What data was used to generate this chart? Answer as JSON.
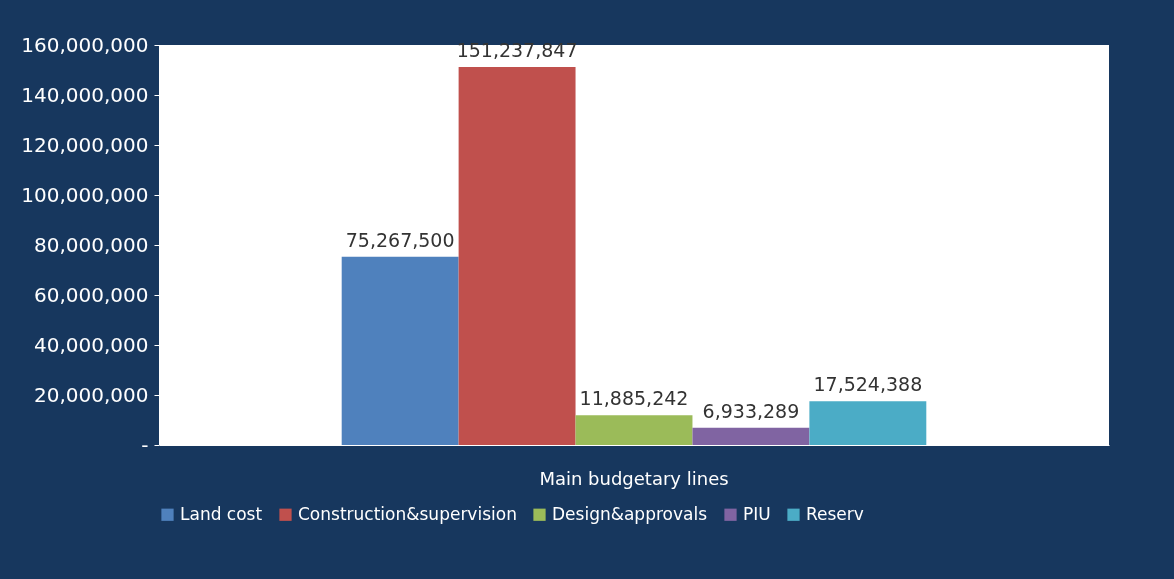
{
  "chart_data": {
    "type": "bar",
    "categories": [
      "Main budgetary lines"
    ],
    "series": [
      {
        "name": "Land cost",
        "color": "#4f81bd",
        "values": [
          75267500
        ],
        "value_labels": [
          "75,267,500"
        ]
      },
      {
        "name": "Construction&supervision",
        "color": "#c0504d",
        "values": [
          151237847
        ],
        "value_labels": [
          "151,237,847"
        ]
      },
      {
        "name": "Design&approvals",
        "color": "#9bbb59",
        "values": [
          11885242
        ],
        "value_labels": [
          "11,885,242"
        ]
      },
      {
        "name": "PIU",
        "color": "#8064a2",
        "values": [
          6933289
        ],
        "value_labels": [
          "6,933,289"
        ]
      },
      {
        "name": "Reserv",
        "color": "#4bacc6",
        "values": [
          17524388
        ],
        "value_labels": [
          "17,524,388"
        ]
      }
    ],
    "ylim": [
      0,
      160000000
    ],
    "yticks": [
      {
        "value": 0,
        "label": "-"
      },
      {
        "value": 20000000,
        "label": "20,000,000"
      },
      {
        "value": 40000000,
        "label": "40,000,000"
      },
      {
        "value": 60000000,
        "label": "60,000,000"
      },
      {
        "value": 80000000,
        "label": "80,000,000"
      },
      {
        "value": 100000000,
        "label": "100,000,000"
      },
      {
        "value": 120000000,
        "label": "120,000,000"
      },
      {
        "value": 140000000,
        "label": "140,000,000"
      },
      {
        "value": 160000000,
        "label": "160,000,000"
      }
    ],
    "grid": false,
    "legend": "bottom"
  }
}
